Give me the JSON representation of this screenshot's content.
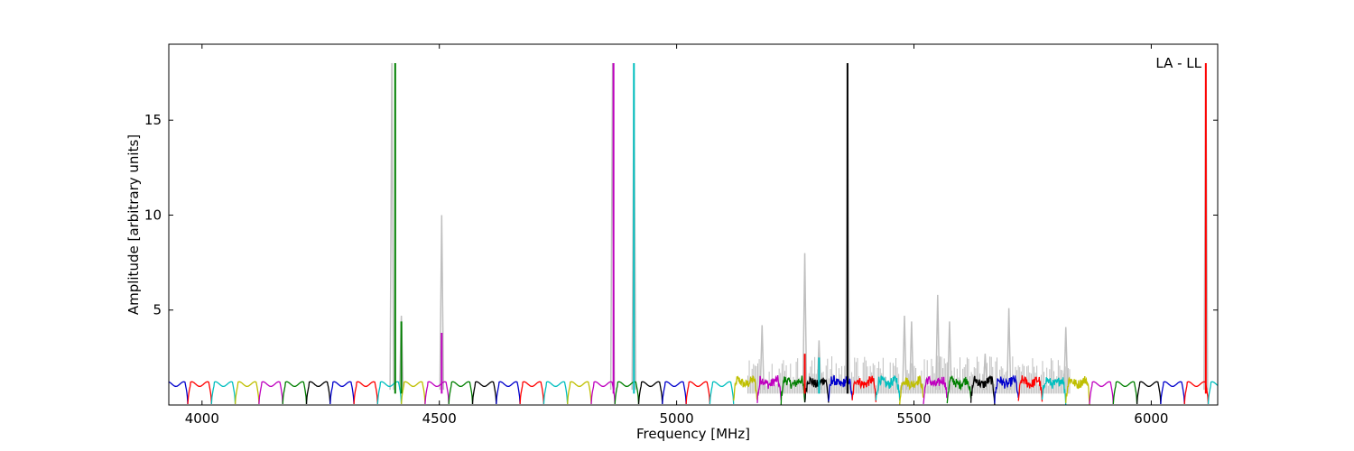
{
  "chart_data": {
    "type": "line",
    "title": "",
    "xlabel": "Frequency [MHz]",
    "ylabel": "Amplitude [arbitrary units]",
    "xlim": [
      3930,
      6140
    ],
    "ylim": [
      0,
      19
    ],
    "xticks": [
      4000,
      4500,
      5000,
      5500,
      6000
    ],
    "yticks": [
      5,
      10,
      15
    ],
    "annotation": "LA - LL",
    "annotation_position": "top-right",
    "grid": false,
    "legend": "none",
    "channel_width_mhz": 50,
    "channel_color_cycle": [
      "#0000cc",
      "#ff0000",
      "#00bfbf",
      "#bfbf00",
      "#bf00bf",
      "#007f00",
      "#000000"
    ],
    "background_series": {
      "color": "#bfbfbf",
      "description_points": [
        [
          4400,
          18.0
        ],
        [
          4420,
          4.7
        ],
        [
          4505,
          10.0
        ],
        [
          4865,
          18.0
        ],
        [
          4910,
          18.0
        ],
        [
          5180,
          4.2
        ],
        [
          5270,
          8.0
        ],
        [
          5300,
          3.4
        ],
        [
          5360,
          18.0
        ],
        [
          5480,
          4.7
        ],
        [
          5495,
          4.4
        ],
        [
          5550,
          5.8
        ],
        [
          5575,
          4.4
        ],
        [
          5650,
          2.7
        ],
        [
          5700,
          5.1
        ],
        [
          5820,
          4.1
        ],
        [
          6115,
          18.0
        ]
      ]
    },
    "spikes": [
      {
        "x": 4407,
        "y": 18.0,
        "color": "#007f00"
      },
      {
        "x": 4420,
        "y": 4.4,
        "color": "#007f00"
      },
      {
        "x": 4505,
        "y": 3.8,
        "color": "#bf00bf"
      },
      {
        "x": 4867,
        "y": 18.0,
        "color": "#bf00bf"
      },
      {
        "x": 4910,
        "y": 18.0,
        "color": "#00bfbf"
      },
      {
        "x": 5270,
        "y": 2.7,
        "color": "#ff0000"
      },
      {
        "x": 5300,
        "y": 2.5,
        "color": "#00bfbf"
      },
      {
        "x": 5360,
        "y": 18.0,
        "color": "#000000"
      },
      {
        "x": 6115,
        "y": 18.0,
        "color": "#ff0000"
      }
    ]
  }
}
